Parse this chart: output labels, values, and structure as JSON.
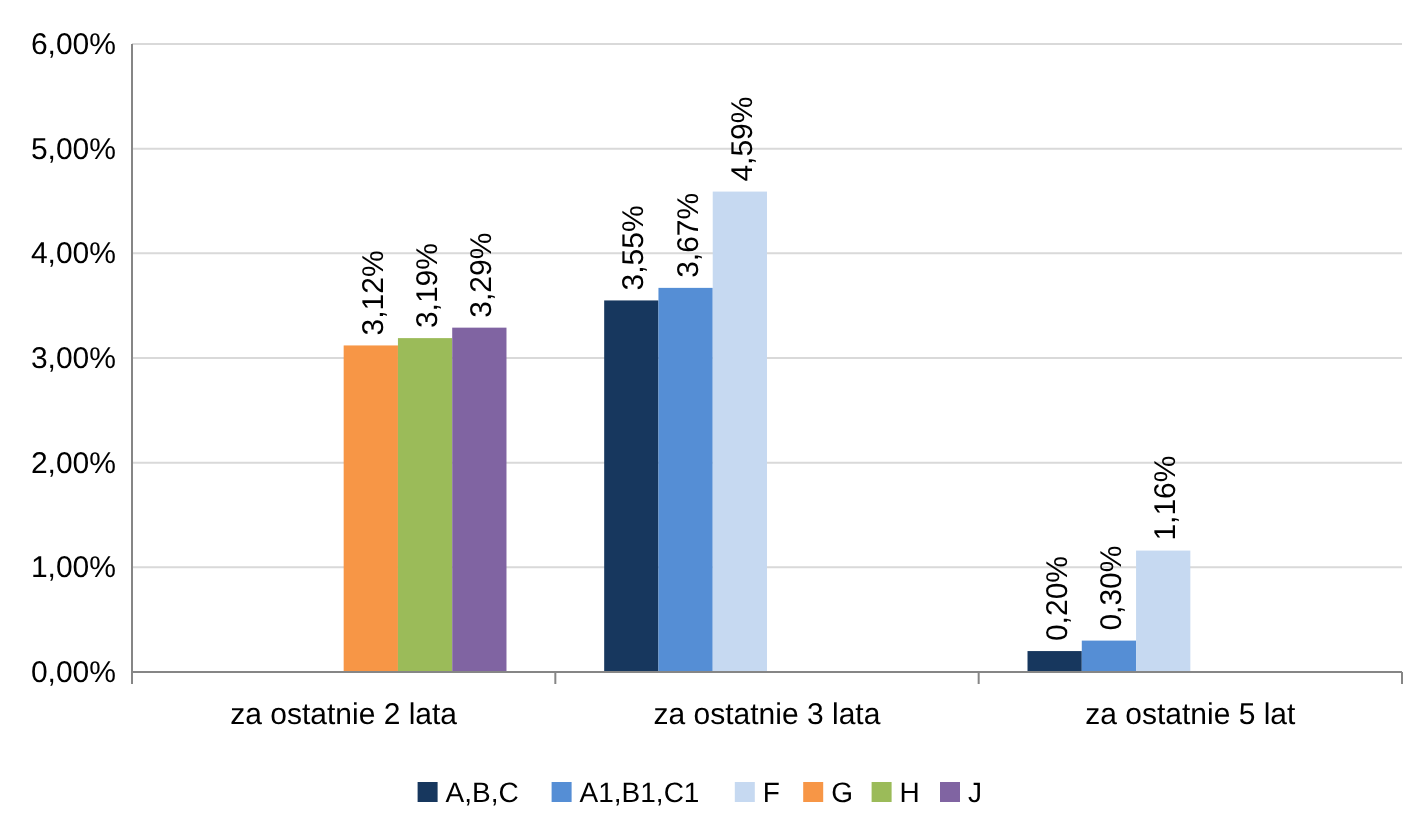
{
  "chart_data": {
    "type": "bar",
    "categories": [
      "za ostatnie 2 lata",
      "za ostatnie 3 lata",
      "za ostatnie 5 lat"
    ],
    "series": [
      {
        "name": "A,B,C",
        "color": "#17375e",
        "values": [
          null,
          3.55,
          0.2
        ],
        "value_labels": [
          null,
          "3,55%",
          "0,20%"
        ]
      },
      {
        "name": "A1,B1,C1",
        "color": "#558ed5",
        "values": [
          null,
          3.67,
          0.3
        ],
        "value_labels": [
          null,
          "3,67%",
          "0,30%"
        ]
      },
      {
        "name": "F",
        "color": "#c6d9f1",
        "values": [
          null,
          4.59,
          1.16
        ],
        "value_labels": [
          null,
          "4,59%",
          "1,16%"
        ]
      },
      {
        "name": "G",
        "color": "#f79646",
        "values": [
          3.12,
          null,
          null
        ],
        "value_labels": [
          "3,12%",
          null,
          null
        ]
      },
      {
        "name": "H",
        "color": "#9bbb59",
        "values": [
          3.19,
          null,
          null
        ],
        "value_labels": [
          "3,19%",
          null,
          null
        ]
      },
      {
        "name": "J",
        "color": "#8064a2",
        "values": [
          3.29,
          null,
          null
        ],
        "value_labels": [
          "3,29%",
          null,
          null
        ]
      }
    ],
    "ylim": [
      0,
      6
    ],
    "yticks": [
      {
        "value": 0,
        "label": "0,00%"
      },
      {
        "value": 1,
        "label": "1,00%"
      },
      {
        "value": 2,
        "label": "2,00%"
      },
      {
        "value": 3,
        "label": "3,00%"
      },
      {
        "value": 4,
        "label": "4,00%"
      },
      {
        "value": 5,
        "label": "5,00%"
      },
      {
        "value": 6,
        "label": "6,00%"
      }
    ],
    "grid": "y",
    "legend": "bottom"
  }
}
